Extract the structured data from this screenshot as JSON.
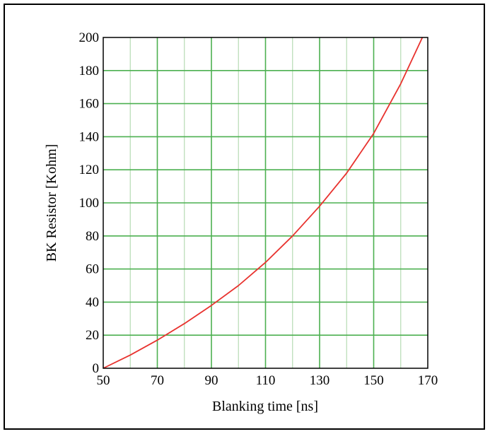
{
  "chart_data": {
    "type": "line",
    "title": "",
    "xlabel": "Blanking time [ns]",
    "ylabel": "BK Resistor [Kohm]",
    "xlim": [
      50,
      170
    ],
    "ylim": [
      0,
      200
    ],
    "x_ticks": [
      "50",
      "70",
      "90",
      "110",
      "130",
      "150",
      "170"
    ],
    "y_ticks": [
      "0",
      "20",
      "40",
      "60",
      "80",
      "100",
      "120",
      "140",
      "160",
      "180",
      "200"
    ],
    "grid": true,
    "legend": "none",
    "colors": {
      "series": "#e8322e",
      "major_grid": "#4cb050",
      "minor_grid": "#b6dcb4",
      "frame": "#000000"
    },
    "series": [
      {
        "x": [
          50,
          60,
          70,
          80,
          90,
          100,
          110,
          120,
          130,
          140,
          150,
          160,
          168
        ],
        "values": [
          0,
          8,
          17,
          27,
          38,
          50,
          64,
          80,
          98,
          118,
          142,
          172,
          200
        ]
      }
    ]
  }
}
